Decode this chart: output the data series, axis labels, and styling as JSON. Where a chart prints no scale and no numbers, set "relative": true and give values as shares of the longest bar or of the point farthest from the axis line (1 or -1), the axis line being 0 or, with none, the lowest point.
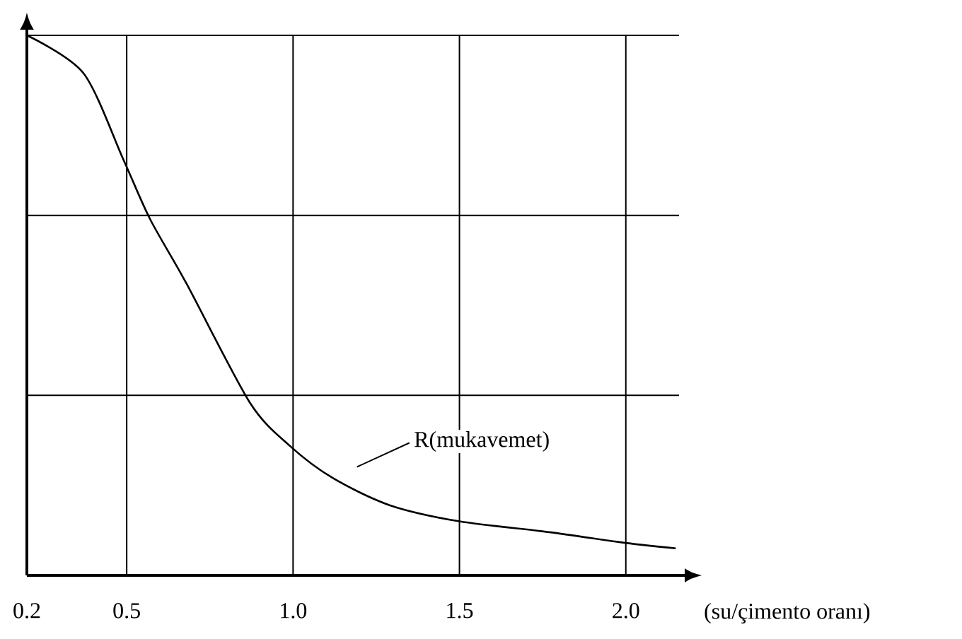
{
  "chart_data": {
    "type": "line",
    "xlabel": "(su/çimento oranı)",
    "relative": true,
    "xlim": [
      0.2,
      2.16
    ],
    "xticks": [
      0.2,
      0.5,
      {
        "value": 1,
        "label": "1.0"
      },
      1.5,
      {
        "value": 2,
        "label": "2.0"
      }
    ],
    "grid": true,
    "marker": "none",
    "line_style": "solid",
    "series": [
      {
        "name": "R(mukavemet)",
        "color": "#000000",
        "x": [
          0.2,
          0.37,
          0.49,
          0.57,
          0.68,
          0.87,
          0.99,
          1.12,
          1.29,
          1.5,
          1.77,
          2.0,
          2.15
        ],
        "values": [
          1.0,
          0.93,
          0.77,
          0.66,
          0.54,
          0.32,
          0.24,
          0.18,
          0.13,
          0.1,
          0.08,
          0.06,
          0.05
        ]
      }
    ]
  }
}
